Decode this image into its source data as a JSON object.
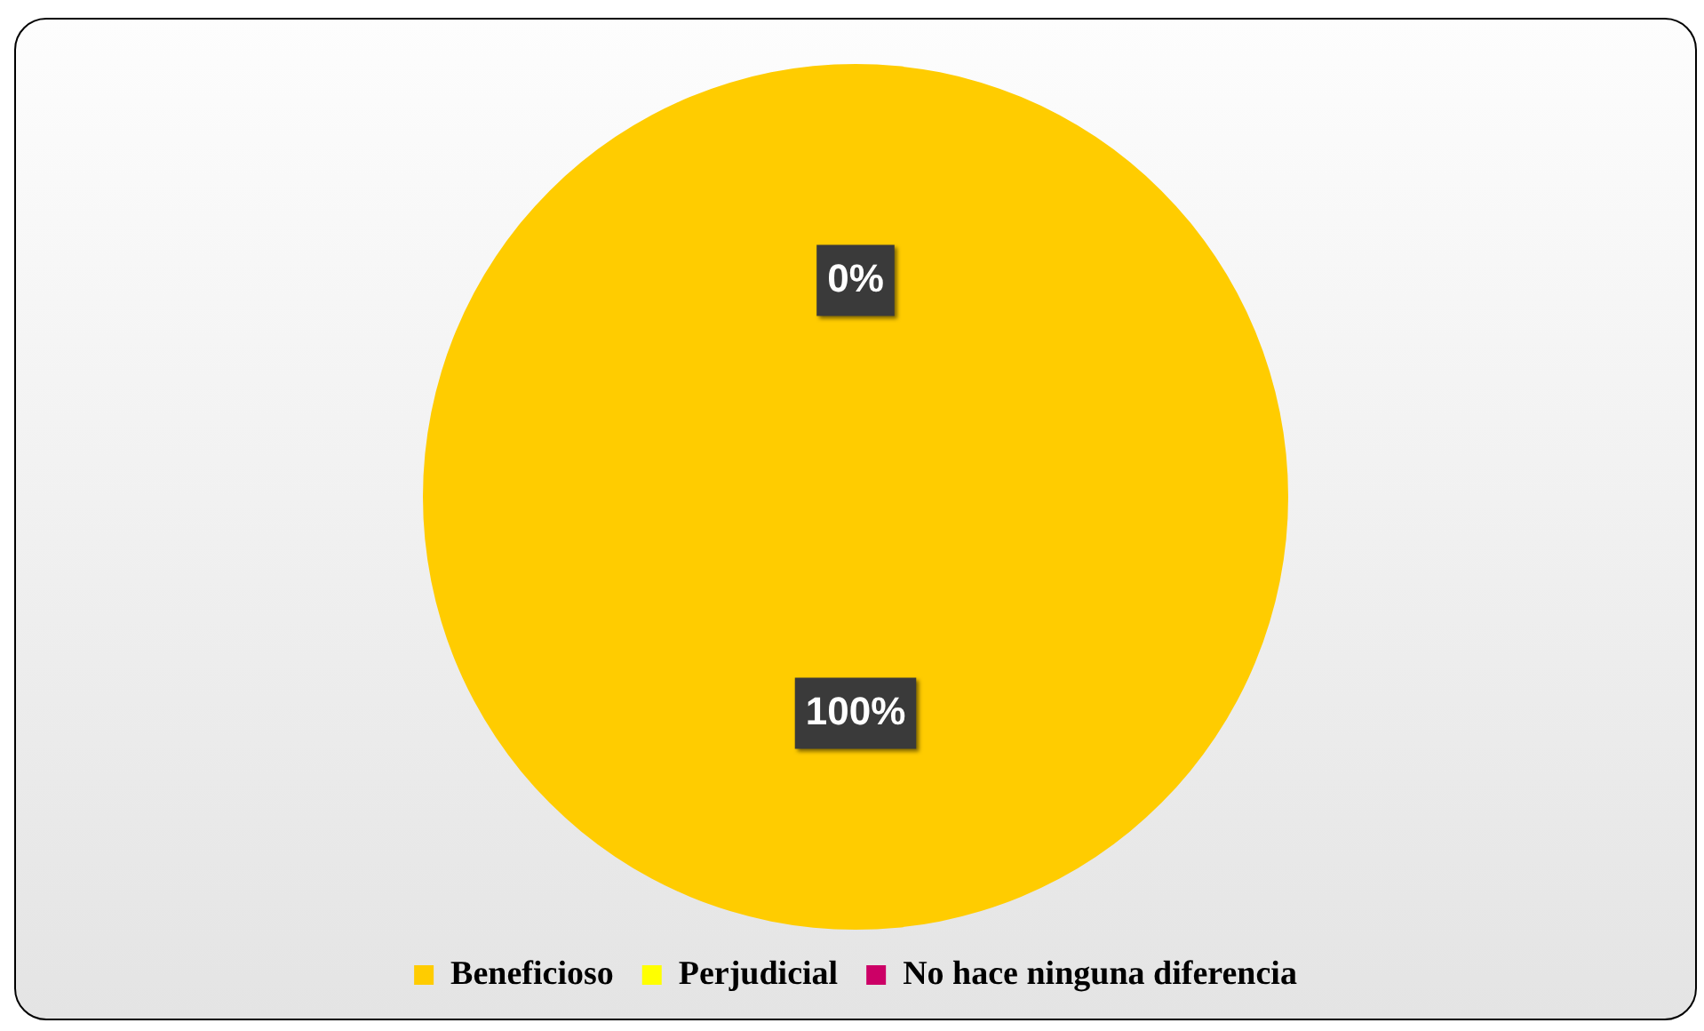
{
  "chart_data": {
    "type": "pie",
    "categories": [
      "Beneficioso",
      "Perjudicial",
      "No hace ninguna diferencia"
    ],
    "values": [
      100,
      0,
      0
    ],
    "colors": [
      "#ffcc00",
      "#ffff00",
      "#cc0066"
    ],
    "value_labels": [
      "100%",
      "0%",
      null
    ],
    "legend": "bottom"
  }
}
